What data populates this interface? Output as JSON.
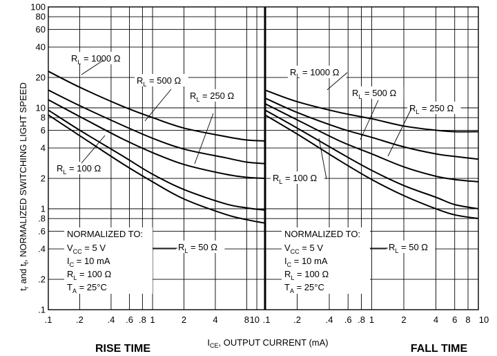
{
  "chart_data": {
    "type": "line",
    "x_scale": "log",
    "y_scale": "log",
    "xlim": [
      0.1,
      10
    ],
    "ylim": [
      0.1,
      100
    ],
    "x_ticks": [
      ".1",
      ".2",
      ".4",
      ".6",
      ".8",
      "1",
      "2",
      "4",
      "8",
      "10"
    ],
    "x_ticks_right": [
      ".1",
      ".2",
      ".4",
      ".6",
      ".8",
      "1",
      "2",
      "4",
      "6",
      "8",
      "10"
    ],
    "y_ticks": [
      "100",
      "80",
      "60",
      "40",
      "20",
      "10",
      "8",
      "6",
      "4",
      "2",
      "1",
      ".8",
      ".6",
      ".4",
      ".2",
      ".1"
    ],
    "ylabel": {
      "a": "t",
      "a_sub": "r",
      "b": " and t",
      "b_sub": "f",
      "c": ", NORMALIZED SWITCHING LIGHT SPEED"
    },
    "xlabel": {
      "main": "I",
      "sub": "CE",
      "rest": ", OUTPUT CURRENT (mA)"
    },
    "panels": [
      {
        "title": "RISE TIME",
        "series": [
          {
            "name": "1000 Ω",
            "x": [
              0.1,
              0.2,
              0.5,
              1,
              2,
              5,
              8,
              12
            ],
            "y": [
              23,
              16,
              10.5,
              8,
              6.3,
              5.2,
              4.8,
              4.7
            ]
          },
          {
            "name": "500 Ω",
            "x": [
              0.1,
              0.2,
              0.5,
              1,
              2,
              5,
              8,
              12
            ],
            "y": [
              15,
              10.5,
              6.8,
              5,
              3.9,
              3.2,
              2.9,
              2.8
            ]
          },
          {
            "name": "250 Ω",
            "x": [
              0.1,
              0.2,
              0.5,
              1,
              2,
              5,
              8,
              12
            ],
            "y": [
              12,
              8.2,
              5,
              3.6,
              2.75,
              2.2,
              2.05,
              2
            ]
          },
          {
            "name": "100 Ω",
            "x": [
              0.1,
              0.2,
              0.5,
              1,
              2,
              5,
              8,
              12
            ],
            "y": [
              9.5,
              6,
              3.4,
              2.2,
              1.55,
              1.12,
              1.02,
              0.97
            ]
          },
          {
            "name": "50 Ω",
            "x": [
              0.1,
              0.2,
              0.5,
              1,
              2,
              5,
              8,
              12
            ],
            "y": [
              8.5,
              5.3,
              2.85,
              1.85,
              1.25,
              0.88,
              0.78,
              0.72
            ]
          }
        ]
      },
      {
        "title": "FALL TIME",
        "series": [
          {
            "name": "1000 Ω",
            "x": [
              0.1,
              0.2,
              0.5,
              1,
              2,
              4,
              6,
              10
            ],
            "y": [
              15,
              11.5,
              9,
              7.8,
              6.6,
              6,
              5.8,
              5.8
            ]
          },
          {
            "name": "500 Ω",
            "x": [
              0.1,
              0.2,
              0.5,
              1,
              2,
              4,
              6,
              10
            ],
            "y": [
              12.5,
              9,
              6.3,
              5.1,
              4.1,
              3.5,
              3.3,
              3.1
            ]
          },
          {
            "name": "250 Ω",
            "x": [
              0.1,
              0.2,
              0.5,
              1,
              2,
              4,
              6,
              10
            ],
            "y": [
              11,
              7.6,
              4.7,
              3.5,
              2.6,
              2.1,
              1.95,
              1.85
            ]
          },
          {
            "name": "100 Ω",
            "x": [
              0.1,
              0.2,
              0.5,
              1,
              2,
              4,
              6,
              10
            ],
            "y": [
              9.5,
              6.3,
              3.6,
              2.4,
              1.7,
              1.3,
              1.1,
              1
            ]
          },
          {
            "name": "50 Ω",
            "x": [
              0.1,
              0.2,
              0.5,
              1,
              2,
              4,
              6,
              10
            ],
            "y": [
              8.5,
              5.5,
              3,
              1.95,
              1.35,
              1,
              0.87,
              0.8
            ]
          }
        ]
      }
    ],
    "curve_labels": {
      "left": [
        {
          "series": "1000 Ω",
          "text": " = 1000 Ω"
        },
        {
          "series": "500 Ω",
          "text": " = 500 Ω"
        },
        {
          "series": "250 Ω",
          "text": " = 250 Ω"
        },
        {
          "series": "100 Ω",
          "text": " = 100 Ω"
        },
        {
          "series": "50 Ω",
          "text": " = 50 Ω"
        }
      ],
      "right": [
        {
          "series": "1000 Ω",
          "text": " = 1000 Ω"
        },
        {
          "series": "500 Ω",
          "text": " = 500 Ω"
        },
        {
          "series": "250 Ω",
          "text": " = 250 Ω"
        },
        {
          "series": "100 Ω",
          "text": " = 100 Ω"
        },
        {
          "series": "50 Ω",
          "text": " = 50 Ω"
        }
      ],
      "prefix": "R",
      "prefix_sub": "L"
    },
    "normalized_to": {
      "heading": "NORMALIZED TO:",
      "lines": [
        {
          "a": "V",
          "sub": "CC",
          "b": " = 5 V"
        },
        {
          "a": "I",
          "sub": "C",
          "b": " = 10 mA"
        },
        {
          "a": "R",
          "sub": "L",
          "b": " = 100 Ω"
        },
        {
          "a": "T",
          "sub": "A",
          "b": " = 25°C"
        }
      ]
    }
  }
}
